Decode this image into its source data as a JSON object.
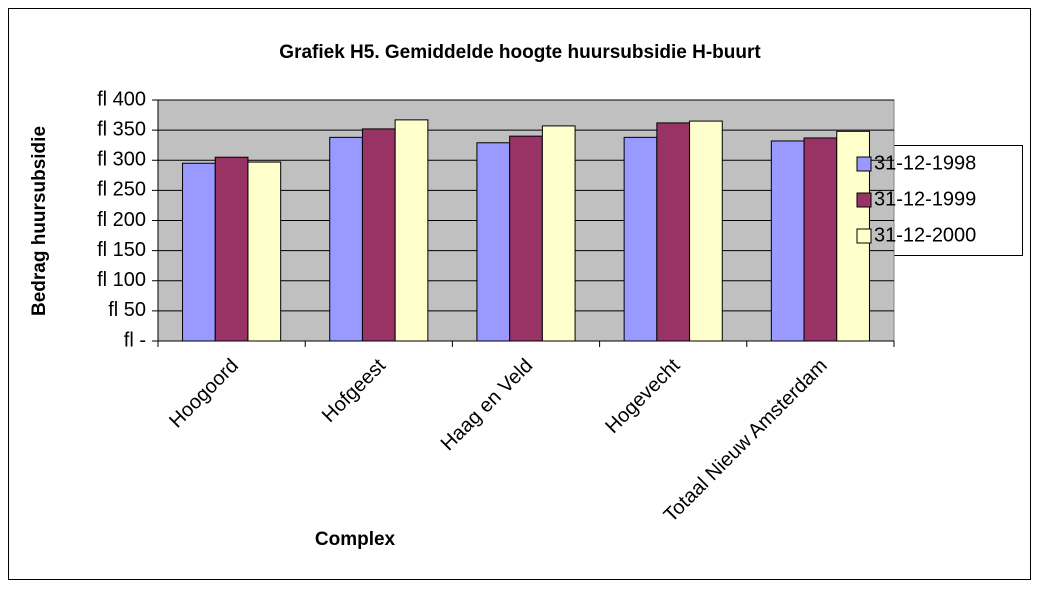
{
  "chart_data": {
    "type": "bar",
    "title": "Grafiek H5. Gemiddelde hoogte huursubsidie H-buurt",
    "x_label": "Complex",
    "y_label": "Bedrag huursubsidie",
    "categories": [
      "Hoogoord",
      "Hofgeest",
      "Haag en Veld",
      "Hogevecht",
      "Totaal Nieuw Amsterdam"
    ],
    "series": [
      {
        "name": "31-12-1998",
        "color": "#9999ff",
        "values": [
          295,
          338,
          329,
          338,
          332
        ]
      },
      {
        "name": "31-12-1999",
        "color": "#993366",
        "values": [
          305,
          352,
          340,
          362,
          337
        ]
      },
      {
        "name": "31-12-2000",
        "color": "#ffffcc",
        "values": [
          297,
          367,
          357,
          365,
          348
        ]
      }
    ],
    "ylim": [
      0,
      400
    ],
    "yticks": [
      {
        "value": 0,
        "label": "fl -"
      },
      {
        "value": 50,
        "label": "fl 50"
      },
      {
        "value": 100,
        "label": "fl 100"
      },
      {
        "value": 150,
        "label": "fl 150"
      },
      {
        "value": 200,
        "label": "fl 200"
      },
      {
        "value": 250,
        "label": "fl 250"
      },
      {
        "value": 300,
        "label": "fl 300"
      },
      {
        "value": 350,
        "label": "fl 350"
      },
      {
        "value": 400,
        "label": "fl 400"
      }
    ],
    "grid": true,
    "legend": "right",
    "plot_background": "#c0c0c0"
  }
}
